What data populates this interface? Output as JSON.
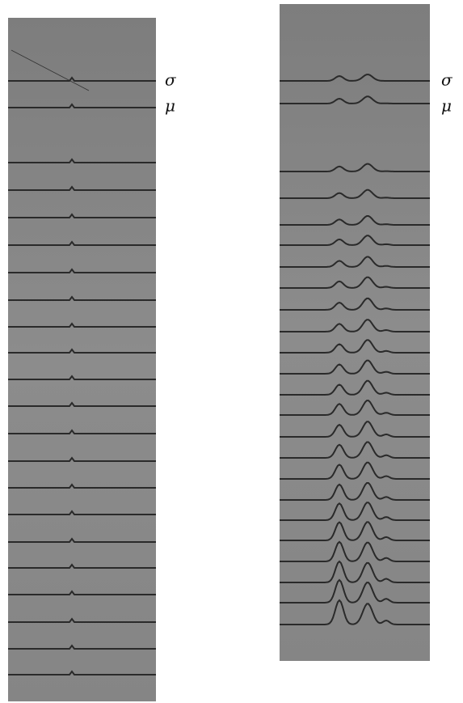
{
  "panels": [
    {
      "labels": [
        "σ",
        "μ"
      ]
    },
    {
      "labels": [
        "σ",
        "μ"
      ]
    }
  ]
}
